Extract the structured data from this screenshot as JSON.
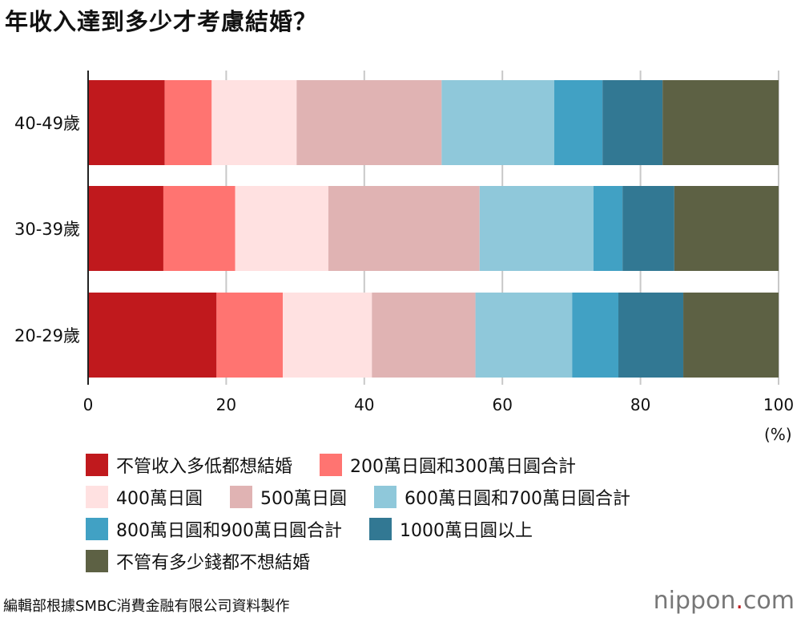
{
  "title": "年收入達到多少才考慮結婚？",
  "chart_data": {
    "type": "bar",
    "orientation": "horizontal",
    "stacked": true,
    "title": "年收入達到多少才考慮結婚？",
    "xlabel": "(%)",
    "xlim": [
      0,
      100
    ],
    "xticks": [
      0,
      20,
      40,
      60,
      80,
      100
    ],
    "grid": true,
    "legend_position": "bottom",
    "categories": [
      "40-49歲",
      "30-39歲",
      "20-29歲"
    ],
    "series": [
      {
        "name": "不管收入多低都想結婚",
        "color": "#c0191d",
        "values": [
          11.1,
          10.9,
          18.6
        ]
      },
      {
        "name": "200萬日圓和300萬日圓合計",
        "color": "#ff7471",
        "values": [
          6.8,
          10.4,
          9.6
        ]
      },
      {
        "name": "400萬日圓",
        "color": "#ffe1e1",
        "values": [
          12.3,
          13.5,
          12.9
        ]
      },
      {
        "name": "500萬日圓",
        "color": "#e0b3b3",
        "values": [
          21.0,
          21.9,
          15.0
        ]
      },
      {
        "name": "600萬日圓和700萬日圓合計",
        "color": "#8fc8da",
        "values": [
          16.3,
          16.5,
          14.0
        ]
      },
      {
        "name": "800萬日圓和900萬日圓合計",
        "color": "#41a1c4",
        "values": [
          7.0,
          4.2,
          6.7
        ]
      },
      {
        "name": "1000萬日圓以上",
        "color": "#327893",
        "values": [
          8.7,
          7.5,
          9.4
        ]
      },
      {
        "name": "不管有多少錢都不想結婚",
        "color": "#5d6144",
        "values": [
          16.8,
          15.1,
          13.8
        ]
      }
    ]
  },
  "legend_rows": [
    [
      0,
      1
    ],
    [
      2,
      3,
      4
    ],
    [
      5,
      6
    ],
    [
      7
    ]
  ],
  "footer": "編輯部根據SMBC消費金融有限公司資料製作",
  "logo": {
    "name": "nippon",
    "dot": ".",
    "suffix": "com"
  }
}
